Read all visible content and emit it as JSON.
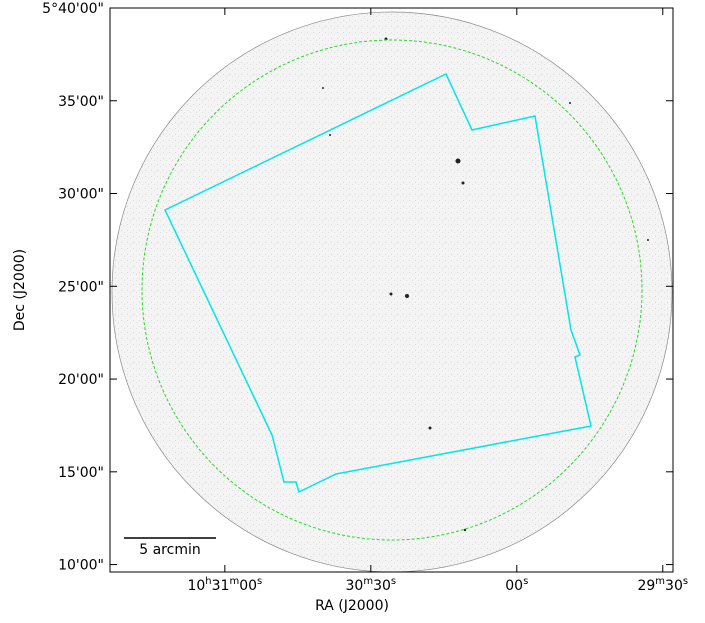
{
  "chart_data": {
    "type": "sky-image",
    "xlabel": "RA (J2000)",
    "ylabel": "Dec (J2000)",
    "xlim": [
      83.6,
      -32.1
    ],
    "xticks": [
      {
        "value": 60,
        "label": "10h31m00s"
      },
      {
        "value": 30,
        "label": "30m30s"
      },
      {
        "value": 0,
        "label": "00s"
      },
      {
        "value": -30,
        "label": "29m30s"
      }
    ],
    "ylim": [
      9.6,
      40
    ],
    "yticks": [
      {
        "value": 40,
        "label": "5°40'00\""
      },
      {
        "value": 35,
        "label": "35'00\""
      },
      {
        "value": 30,
        "label": "30'00\""
      },
      {
        "value": 25,
        "label": "25'00\""
      },
      {
        "value": 20,
        "label": "20'00\""
      },
      {
        "value": 15,
        "label": "15'00\""
      },
      {
        "value": 10,
        "label": "10'00\""
      }
    ],
    "scale_bar": "5 arcmin"
  }
}
